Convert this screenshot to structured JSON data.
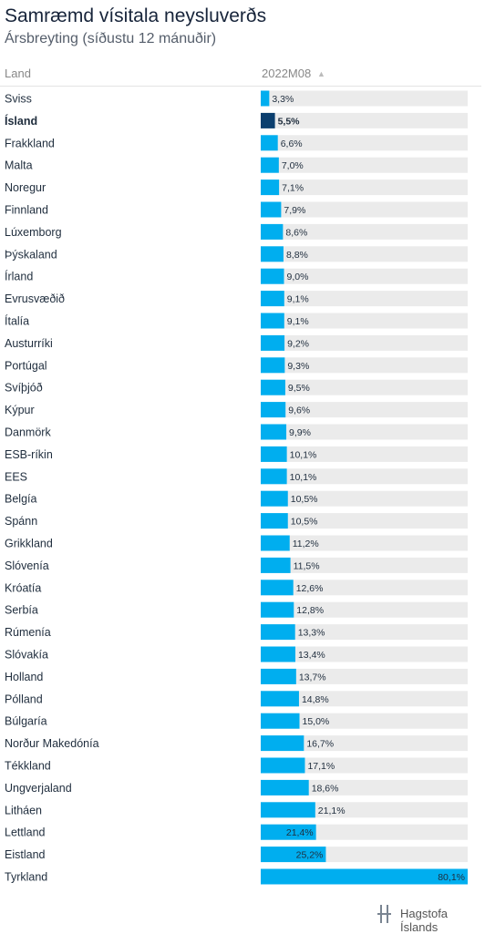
{
  "header": {
    "title": "Samræmd vísitala neysluverðs",
    "subtitle": "Ársbreyting (síðustu 12 mánuðir)",
    "col_land": "Land",
    "col_value": "2022M08"
  },
  "footer": {
    "brand": "Hagstofa Íslands"
  },
  "colors": {
    "bar": "#00aeef",
    "highlight": "#0b3f6e",
    "track": "#ebebeb"
  },
  "chart_data": {
    "type": "bar",
    "orientation": "horizontal",
    "highlight": "Ísland",
    "xlim": [
      0,
      80.1
    ],
    "categories": [
      "Sviss",
      "Ísland",
      "Frakkland",
      "Malta",
      "Noregur",
      "Finnland",
      "Lúxemborg",
      "Þýskaland",
      "Írland",
      "Evrusvæðið",
      "Ítalía",
      "Austurríki",
      "Portúgal",
      "Svíþjóð",
      "Kýpur",
      "Danmörk",
      "ESB-ríkin",
      "EES",
      "Belgía",
      "Spánn",
      "Grikkland",
      "Slóvenía",
      "Króatía",
      "Serbía",
      "Rúmenía",
      "Slóvakía",
      "Holland",
      "Pólland",
      "Búlgaría",
      "Norður Makedónía",
      "Tékkland",
      "Ungverjaland",
      "Litháen",
      "Lettland",
      "Eistland",
      "Tyrkland"
    ],
    "values": [
      3.3,
      5.5,
      6.6,
      7.0,
      7.1,
      7.9,
      8.6,
      8.8,
      9.0,
      9.1,
      9.1,
      9.2,
      9.3,
      9.5,
      9.6,
      9.9,
      10.1,
      10.1,
      10.5,
      10.5,
      11.2,
      11.5,
      12.6,
      12.8,
      13.3,
      13.4,
      13.7,
      14.8,
      15.0,
      16.7,
      17.1,
      18.6,
      21.1,
      21.4,
      25.2,
      80.1
    ],
    "labels": [
      "3,3%",
      "5,5%",
      "6,6%",
      "7,0%",
      "7,1%",
      "7,9%",
      "8,6%",
      "8,8%",
      "9,0%",
      "9,1%",
      "9,1%",
      "9,2%",
      "9,3%",
      "9,5%",
      "9,6%",
      "9,9%",
      "10,1%",
      "10,1%",
      "10,5%",
      "10,5%",
      "11,2%",
      "11,5%",
      "12,6%",
      "12,8%",
      "13,3%",
      "13,4%",
      "13,7%",
      "14,8%",
      "15,0%",
      "16,7%",
      "17,1%",
      "18,6%",
      "21,1%",
      "21,4%",
      "25,2%",
      "80,1%"
    ]
  }
}
